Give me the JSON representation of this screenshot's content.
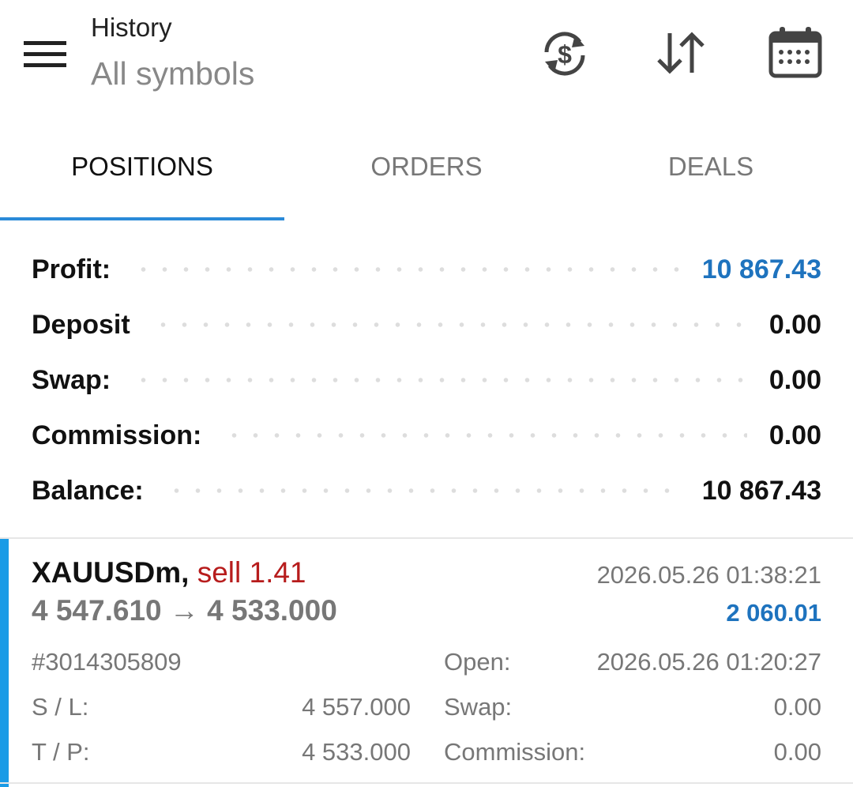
{
  "header": {
    "title": "History",
    "subtitle": "All symbols"
  },
  "tabs": [
    "POSITIONS",
    "ORDERS",
    "DEALS"
  ],
  "summary": [
    {
      "label": "Profit:",
      "value": "10 867.43"
    },
    {
      "label": "Deposit",
      "value": "0.00"
    },
    {
      "label": "Swap:",
      "value": "0.00"
    },
    {
      "label": "Commission:",
      "value": "0.00"
    },
    {
      "label": "Balance:",
      "value": "10 867.43"
    }
  ],
  "position": {
    "symbol": "XAUUSDm,",
    "side": "sell 1.41",
    "close_time": "2026.05.26 01:38:21",
    "open_price": "4 547.610",
    "arrow": "→",
    "close_price": "4 533.000",
    "profit": "2 060.01",
    "ticket": "#3014305809",
    "open_label": "Open:",
    "open_time": "2026.05.26 01:20:27",
    "sl_label": "S / L:",
    "sl": "4 557.000",
    "swap_label": "Swap:",
    "swap": "0.00",
    "tp_label": "T / P:",
    "tp": "4 533.000",
    "commission_label": "Commission:",
    "commission": "0.00"
  }
}
